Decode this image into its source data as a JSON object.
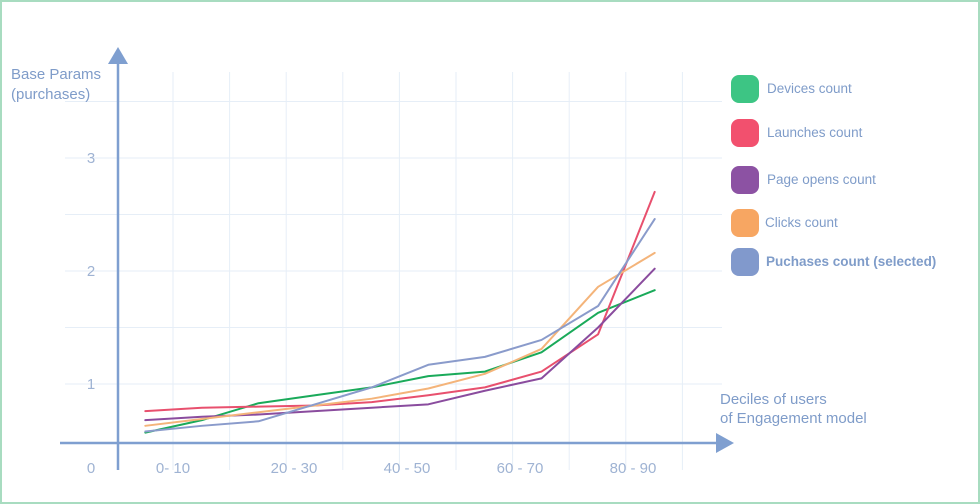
{
  "chart_data": {
    "type": "line",
    "title": "",
    "ylabel_lines": [
      "Base Params",
      "(purchases)"
    ],
    "xlabel_lines": [
      "Deciles of users",
      "of Engagement model"
    ],
    "origin_label": "0",
    "y_ticks": [
      1,
      2,
      3
    ],
    "ylim": [
      0.5,
      3.5
    ],
    "x_tick_labels": [
      "0- 10",
      "20 - 30",
      "40 - 50",
      "60 - 70",
      "80 - 90"
    ],
    "x": [
      5,
      15,
      25,
      35,
      45,
      55,
      65,
      75,
      85,
      95
    ],
    "grid": true,
    "legend_position": "right",
    "series": [
      {
        "name": "Devices count",
        "color": "#3dc584",
        "line_color": "#1aaa5a",
        "values": [
          0.57,
          0.68,
          0.83,
          0.9,
          0.97,
          1.07,
          1.11,
          1.28,
          1.63,
          1.83
        ]
      },
      {
        "name": "Launches count",
        "color": "#f2506e",
        "line_color": "#e8506e",
        "values": [
          0.76,
          0.79,
          0.8,
          0.81,
          0.84,
          0.9,
          0.97,
          1.11,
          1.44,
          2.7
        ]
      },
      {
        "name": "Page opens count",
        "color": "#8c52a3",
        "line_color": "#8a4c9e",
        "values": [
          0.68,
          0.71,
          0.73,
          0.76,
          0.79,
          0.82,
          0.94,
          1.05,
          1.5,
          2.02
        ]
      },
      {
        "name": "Clicks count",
        "color": "#f7a662",
        "line_color": "#f4b47a",
        "values": [
          0.63,
          0.69,
          0.75,
          0.81,
          0.87,
          0.96,
          1.09,
          1.31,
          1.86,
          2.16
        ]
      },
      {
        "name": "Puchases count (selected)",
        "color": "#8199cc",
        "line_color": "#8a9bcb",
        "selected": true,
        "values": [
          0.58,
          0.63,
          0.67,
          0.82,
          0.97,
          1.17,
          1.24,
          1.39,
          1.69,
          2.46
        ]
      }
    ]
  }
}
